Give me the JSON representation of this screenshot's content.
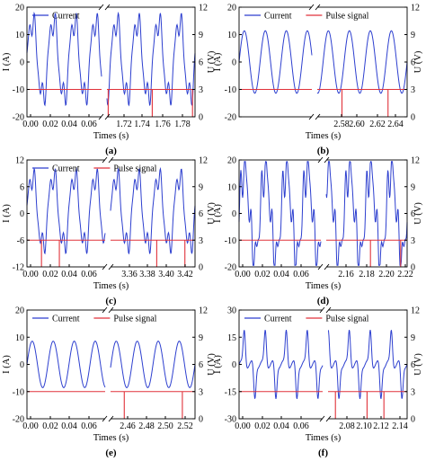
{
  "chart_data": [
    {
      "panel": "(a)",
      "type": "line",
      "xlabel": "Times (s)",
      "ylabel_left": "I (A)",
      "ylabel_right": "U (V)",
      "ylim_left": [
        -20,
        20
      ],
      "yticks_left": [
        "20",
        "10",
        "0",
        "-10",
        "-20"
      ],
      "ylim_right": [
        0,
        12
      ],
      "yticks_right": [
        "12",
        "9",
        "6",
        "3",
        "0"
      ],
      "xticks_left": [
        "0.00",
        "0.02",
        "0.04",
        "0.06"
      ],
      "xticks_right": [
        "1.72",
        "1.74",
        "1.76",
        "1.78"
      ],
      "x_left": [
        0.0,
        0.07
      ],
      "x_right": [
        1.71,
        1.78
      ],
      "legend": [
        "Current"
      ],
      "series": [
        {
          "name": "Current",
          "color": "#2d3fcf",
          "form": "distorted_sine",
          "period_s": 0.02,
          "peak_A": 16,
          "trough_A": -14
        },
        {
          "name": "Pulse signal",
          "color": "#e0323a",
          "baseline_V": 3,
          "pulse_low_V": 0,
          "pulses_at_s": [
            1.711,
            1.746,
            1.778
          ]
        }
      ]
    },
    {
      "panel": "(b)",
      "type": "line",
      "xlabel": "Times (s)",
      "ylabel_left": "I (A)",
      "ylabel_right": "U (V)",
      "ylim_left": [
        -20,
        20
      ],
      "yticks_left": [
        "20",
        "10",
        "0",
        "-10",
        "-20"
      ],
      "ylim_right": [
        0,
        12
      ],
      "yticks_right": [
        "12",
        "9",
        "6",
        "3",
        "0"
      ],
      "xticks_left": [],
      "xticks_right": [
        "2.58",
        "2.60",
        "2.62",
        "2.64"
      ],
      "x_left": [
        0.0,
        0.07
      ],
      "x_right": [
        2.56,
        2.64
      ],
      "legend": [
        "Current",
        "Pulse signal"
      ],
      "series": [
        {
          "name": "Current",
          "color": "#2d3fcf",
          "form": "sine",
          "period_s": 0.02,
          "peak_A": 12,
          "trough_A": -12
        },
        {
          "name": "Pulse signal",
          "color": "#e0323a",
          "baseline_V": 3,
          "pulse_low_V": 0,
          "pulses_at_s": [
            2.582,
            2.623
          ]
        }
      ]
    },
    {
      "panel": "(c)",
      "type": "line",
      "xlabel": "Times (s)",
      "ylabel_left": "I (A)",
      "ylabel_right": "U (V)",
      "ylim_left": [
        -12,
        12
      ],
      "yticks_left": [
        "12",
        "6",
        "0",
        "-6",
        "-12"
      ],
      "ylim_right": [
        0,
        12
      ],
      "yticks_right": [
        "12",
        "9",
        "6",
        "3",
        "0"
      ],
      "xticks_left": [
        "0.00",
        "0.02",
        "0.04",
        "0.06"
      ],
      "xticks_right": [
        "3.36",
        "3.38",
        "3.40",
        "3.42"
      ],
      "x_left": [
        0.0,
        0.07
      ],
      "x_right": [
        3.345,
        3.42
      ],
      "legend": [
        "Current",
        "Pulse signal"
      ],
      "series": [
        {
          "name": "Current",
          "color": "#2d3fcf",
          "form": "distorted_sine",
          "period_s": 0.02,
          "peak_A": 9,
          "trough_A": -8
        },
        {
          "name": "Pulse signal",
          "color": "#e0323a",
          "baseline_V": 3,
          "pulse_low_V": 0,
          "pulses_at_s": [
            0.013,
            0.029,
            3.386,
            3.411
          ]
        }
      ]
    },
    {
      "panel": "(d)",
      "type": "line",
      "xlabel": "Times (s)",
      "ylabel_left": "I (A)",
      "ylabel_right": "U (V)",
      "ylim_left": [
        -20,
        20
      ],
      "yticks_left": [
        "20",
        "10",
        "0",
        "-10",
        "-20"
      ],
      "ylim_right": [
        0,
        12
      ],
      "yticks_right": [
        "12",
        "9",
        "6",
        "3",
        "0"
      ],
      "xticks_left": [
        "0.00",
        "0.02",
        "0.04",
        "0.06"
      ],
      "xticks_right": [
        "2.16",
        "2.18",
        "2.20",
        "2.22"
      ],
      "x_left": [
        0.0,
        0.07
      ],
      "x_right": [
        2.145,
        2.22
      ],
      "legend": [],
      "series": [
        {
          "name": "Current",
          "color": "#2d3fcf",
          "form": "spiky_sine",
          "period_s": 0.013,
          "peak_A": 17,
          "trough_A": -17
        },
        {
          "name": "Pulse signal",
          "color": "#e0323a",
          "baseline_V": 3,
          "pulse_low_V": 0,
          "pulses_at_s": [
            2.186,
            2.214
          ]
        }
      ]
    },
    {
      "panel": "(e)",
      "type": "line",
      "xlabel": "Times (s)",
      "ylabel_left": "I (A)",
      "ylabel_right": "U (V)",
      "ylim_left": [
        -20,
        20
      ],
      "yticks_left": [
        "20",
        "10",
        "0",
        "-10",
        "-20"
      ],
      "ylim_right": [
        0,
        12
      ],
      "yticks_right": [
        "12",
        "9",
        "6",
        "3",
        "0"
      ],
      "xticks_left": [
        "0.00",
        "0.02",
        "0.04",
        "0.06"
      ],
      "xticks_right": [
        "2.46",
        "2.48",
        "2.50",
        "2.52"
      ],
      "x_left": [
        0.0,
        0.07
      ],
      "x_right": [
        2.44,
        2.52
      ],
      "legend": [
        "Current",
        "Pulse signal"
      ],
      "series": [
        {
          "name": "Current",
          "color": "#2d3fcf",
          "form": "sine",
          "period_s": 0.018,
          "peak_A": 9,
          "trough_A": -9
        },
        {
          "name": "Pulse signal",
          "color": "#e0323a",
          "baseline_V": 3,
          "pulse_low_V": 0,
          "pulses_at_s": [
            2.453,
            2.508
          ]
        }
      ]
    },
    {
      "panel": "(f)",
      "type": "line",
      "xlabel": "Times (s)",
      "ylabel_left": "I (A)",
      "ylabel_right": "U (V)",
      "ylim_left": [
        -30,
        30
      ],
      "yticks_left": [
        "30",
        "15",
        "0",
        "-15",
        "-30"
      ],
      "ylim_right": [
        0,
        12
      ],
      "yticks_right": [
        "12",
        "9",
        "6",
        "3",
        "0"
      ],
      "xticks_left": [
        "0.00",
        "0.02",
        "0.04",
        "0.06"
      ],
      "xticks_right": [
        "2.08",
        "2.10",
        "2.12",
        "2.14"
      ],
      "x_left": [
        0.0,
        0.07
      ],
      "x_right": [
        2.065,
        2.14
      ],
      "legend": [
        "Current",
        "Pulse signal"
      ],
      "series": [
        {
          "name": "Current",
          "color": "#2d3fcf",
          "form": "spike",
          "period_s": 0.02,
          "peak_A": 20,
          "trough_A": -20
        },
        {
          "name": "Pulse signal",
          "color": "#e0323a",
          "baseline_V": 3,
          "pulse_low_V": 0,
          "pulses_at_s": [
            2.072,
            2.102,
            2.118
          ]
        }
      ]
    }
  ]
}
